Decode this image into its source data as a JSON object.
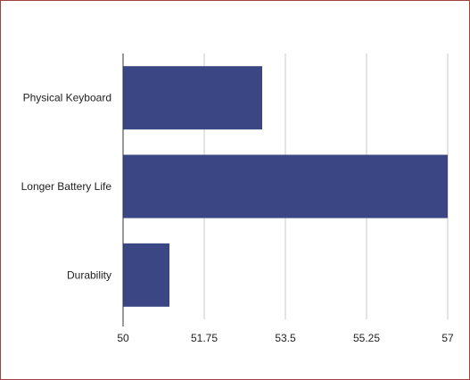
{
  "chart_data": {
    "type": "bar",
    "orientation": "horizontal",
    "title": "",
    "xlabel": "",
    "ylabel": "",
    "categories": [
      "Physical Keyboard",
      "Longer Battery Life",
      "Durability"
    ],
    "values": [
      53,
      57,
      51
    ],
    "xlim": [
      50,
      57
    ],
    "ticks": [
      "50",
      "51.75",
      "53.5",
      "55.25",
      "57"
    ],
    "tick_values": [
      50,
      51.75,
      53.5,
      55.25,
      57
    ],
    "grid": true,
    "legend": "none",
    "colors": {
      "bar": "#3b4784",
      "grid": "#c8c8c8",
      "axis": "#333333",
      "border": "#a0413e"
    }
  }
}
